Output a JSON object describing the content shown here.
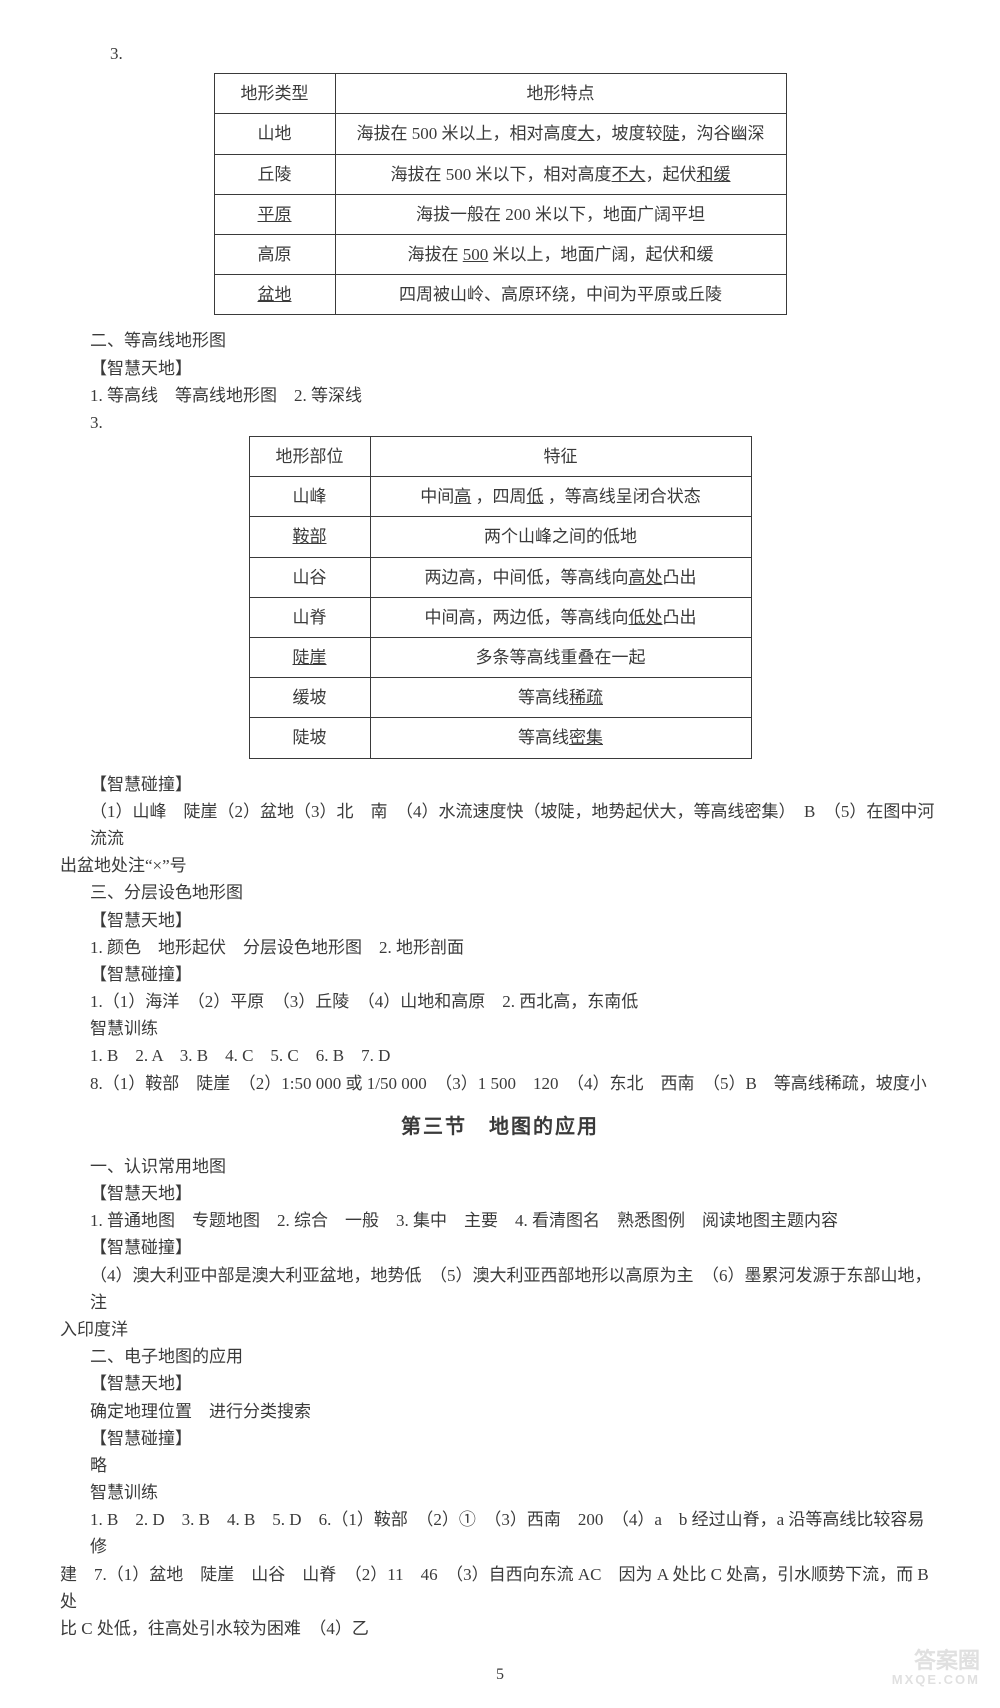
{
  "q3_label": "3.",
  "table1": {
    "header": [
      "地形类型",
      "地形特点"
    ],
    "rows": [
      {
        "c0": "山地",
        "c1_pre": "海拔在 500 米以上，相对高度",
        "c1_u1": "大",
        "c1_mid": "，坡度较",
        "c1_u2": "陡",
        "c1_post": "，沟谷幽深"
      },
      {
        "c0": "丘陵",
        "c1_pre": "海拔在 500 米以下，相对高度",
        "c1_u1": "不大",
        "c1_mid": "，起伏",
        "c1_u2": "和缓",
        "c1_post": ""
      },
      {
        "c0_u": "平原",
        "c1_plain": "海拔一般在 200 米以下，地面广阔平坦"
      },
      {
        "c0": "高原",
        "c1_pre": "海拔在 ",
        "c1_u1": "500",
        "c1_mid": " 米以上，地面广阔，起伏和缓",
        "c1_u2": "",
        "c1_post": ""
      },
      {
        "c0_u": "盆地",
        "c1_plain": "四周被山岭、高原环绕，中间为平原或丘陵"
      }
    ]
  },
  "sec2_heading": "二、等高线地形图",
  "zhtd_label": "【智慧天地】",
  "zhpz_label": "【智慧碰撞】",
  "zhxl_label": "智慧训练",
  "sec2_line1": "1. 等高线　等高线地形图　2. 等深线",
  "sec2_q3": "3.",
  "table2": {
    "header": [
      "地形部位",
      "特征"
    ],
    "rows": [
      {
        "c0": "山峰",
        "parts": [
          "中间",
          {
            "u": "高"
          },
          " ，四周",
          {
            "u": "低"
          },
          " ，等高线呈闭合状态"
        ]
      },
      {
        "c0_u": "鞍部",
        "parts": [
          "两个山峰之间的低地"
        ]
      },
      {
        "c0": "山谷",
        "parts": [
          "两边高，中间低，等高线向",
          {
            "u": "高处"
          },
          "凸出"
        ]
      },
      {
        "c0": "山脊",
        "parts": [
          "中间高，两边低，等高线向",
          {
            "u": "低处"
          },
          "凸出"
        ]
      },
      {
        "c0_u": "陡崖",
        "parts": [
          "多条等高线重叠在一起"
        ]
      },
      {
        "c0": "缓坡",
        "parts": [
          "等高线",
          {
            "u": "稀疏"
          }
        ]
      },
      {
        "c0": "陡坡",
        "parts": [
          "等高线",
          {
            "u": "密集"
          }
        ]
      }
    ]
  },
  "zhpz_block1_l1": "（1）山峰　陡崖（2）盆地（3）北　南　（4）水流速度快（坡陡，地势起伏大，等高线密集）　B　（5）在图中河流流",
  "zhpz_block1_l2": "出盆地处注“×”号",
  "sec3_heading": "三、分层设色地形图",
  "sec3_zhtd_line": "1. 颜色　地形起伏　分层设色地形图　2. 地形剖面",
  "sec3_zhpz_line": "1.（1）海洋　（2）平原　（3）丘陵　（4）山地和高原　2. 西北高，东南低",
  "sec3_zhxl_l1": "1. B　2. A　3. B　4. C　5. C　6. B　7. D",
  "sec3_zhxl_l2": "8.（1）鞍部　陡崖　（2）1:50 000 或 1/50 000　（3）1 500　120　（4）东北　西南　（5）B　等高线稀疏，坡度小",
  "section_title": "第三节　地图的应用",
  "s3p1_heading": "一、认识常用地图",
  "s3p1_zhtd": "1. 普通地图　专题地图　2. 综合　一般　3. 集中　主要　4. 看清图名　熟悉图例　阅读地图主题内容",
  "s3p1_zhpz_l1": "（4）澳大利亚中部是澳大利亚盆地，地势低　（5）澳大利亚西部地形以高原为主　（6）墨累河发源于东部山地，注",
  "s3p1_zhpz_l2": "入印度洋",
  "s3p2_heading": "二、电子地图的应用",
  "s3p2_zhtd": "确定地理位置　进行分类搜索",
  "s3p2_zhpz": "略",
  "s3p2_zhxl_l1": "1. B　2. D　3. B　4. B　5. D　6.（1）鞍部　（2）①　（3）西南　200　（4）a　b 经过山脊，a 沿等高线比较容易修",
  "s3p2_zhxl_l2": "建　7.（1）盆地　陡崖　山谷　山脊　（2）11　46　（3）自西向东流 AC　因为 A 处比 C 处高，引水顺势下流，而 B 处",
  "s3p2_zhxl_l3": "比 C 处低，往高处引水较为困难　（4）乙",
  "page_number": "5",
  "watermark_top": "答案圈",
  "watermark_bottom": "MXQE.COM"
}
